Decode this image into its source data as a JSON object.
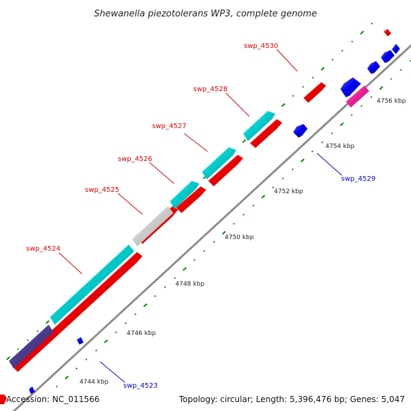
{
  "title": "Shewanella piezotolerans WP3, complete genome",
  "footer": {
    "accession": "Accession: NC_011566",
    "summary": "Topology: circular; Length: 5,396,476 bp; Genes: 5,047"
  },
  "ticks": [
    {
      "label": "4744 kbp"
    },
    {
      "label": "4746 kbp"
    },
    {
      "label": "4748 kbp"
    },
    {
      "label": "4750 kbp"
    },
    {
      "label": "4752 kbp"
    },
    {
      "label": "4754 kbp"
    },
    {
      "label": "4756 kbp"
    }
  ],
  "gene_labels": [
    {
      "text": "swp_4530",
      "color": "#dd0000"
    },
    {
      "text": "swp_4528",
      "color": "#dd0000"
    },
    {
      "text": "swp_4527",
      "color": "#dd0000"
    },
    {
      "text": "swp_4526",
      "color": "#dd0000"
    },
    {
      "text": "swp_4525",
      "color": "#dd0000"
    },
    {
      "text": "swp_4524",
      "color": "#dd0000"
    },
    {
      "text": "swp_4529",
      "color": "#0000cc"
    },
    {
      "text": "swp_4523",
      "color": "#0000cc"
    }
  ],
  "colors": {
    "backbone": "#999999",
    "tick": "#008800",
    "red_gene": "#ee0000",
    "cyan_gene": "#00cccc",
    "blue_gene": "#0000ee",
    "gray_gene": "#cccccc",
    "purple_gene": "#4b3d8f",
    "magenta_gene": "#ee2299"
  }
}
